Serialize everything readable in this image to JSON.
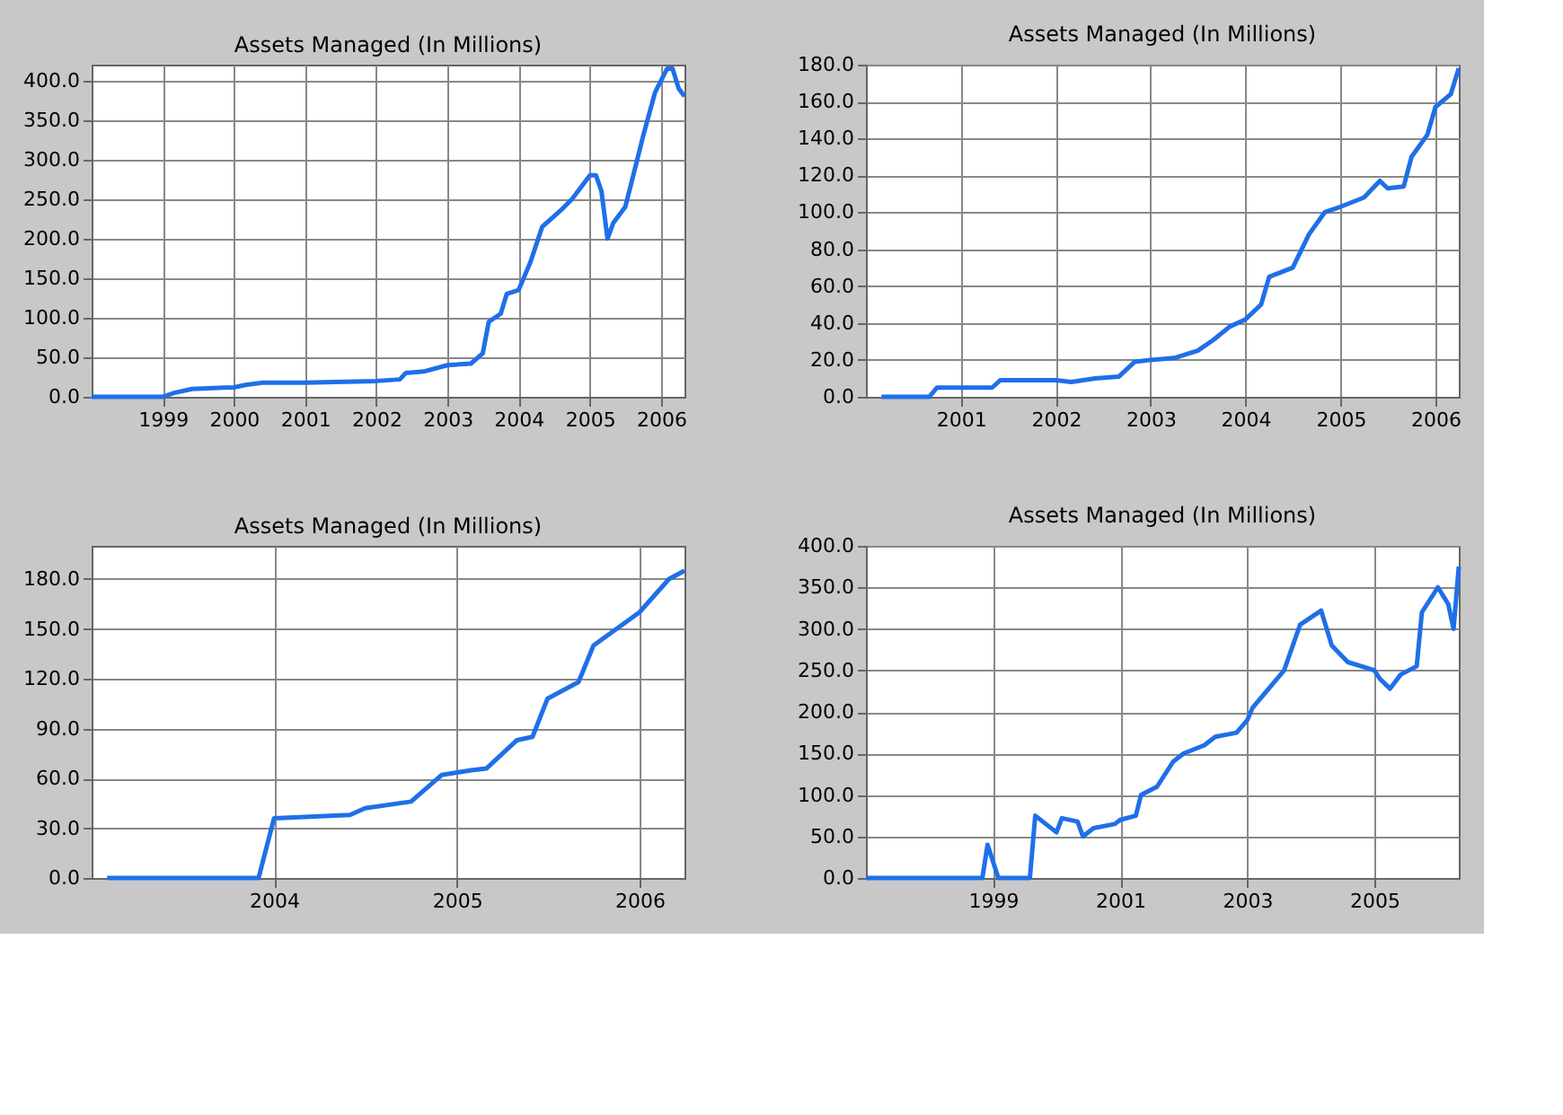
{
  "chart_data": [
    {
      "type": "line",
      "title": "Assets Managed (In Millions)",
      "x": [
        "1998-01",
        "1999-01",
        "1999-03",
        "1999-06",
        "2000-01",
        "2000-03",
        "2000-06",
        "2001-01",
        "2002-01",
        "2002-05",
        "2002-06",
        "2002-09",
        "2003-01",
        "2003-05",
        "2003-07",
        "2003-08",
        "2003-10",
        "2003-11",
        "2004-01",
        "2004-03",
        "2004-05",
        "2004-08",
        "2004-10",
        "2005-01",
        "2005-02",
        "2005-03",
        "2005-04",
        "2005-05",
        "2005-07",
        "2005-08",
        "2005-10",
        "2005-12",
        "2006-02",
        "2006-03",
        "2006-04",
        "2006-05"
      ],
      "series": [
        {
          "color": "#1f6fe8",
          "values": [
            0,
            0,
            5,
            10,
            12,
            15,
            18,
            18,
            20,
            22,
            30,
            32,
            40,
            42,
            55,
            95,
            105,
            130,
            135,
            170,
            215,
            235,
            250,
            280,
            280,
            260,
            200,
            220,
            240,
            270,
            330,
            385,
            415,
            415,
            390,
            380
          ]
        }
      ],
      "xlim": [
        "1998-01",
        "2006-05"
      ],
      "xticks": [
        "1999",
        "2000",
        "2001",
        "2002",
        "2003",
        "2004",
        "2005",
        "2006"
      ],
      "ylim": [
        0,
        420
      ],
      "yticks": [
        {
          "value": 0,
          "label": "0.0"
        },
        {
          "value": 50,
          "label": "50.0"
        },
        {
          "value": 100,
          "label": "100.0"
        },
        {
          "value": 150,
          "label": "150.0"
        },
        {
          "value": 200,
          "label": "200.0"
        },
        {
          "value": 250,
          "label": "250.0"
        },
        {
          "value": 300,
          "label": "300.0"
        },
        {
          "value": 350,
          "label": "350.0"
        },
        {
          "value": 400,
          "label": "400.0"
        }
      ],
      "grid": true,
      "line_style": "solid",
      "marker": "none"
    },
    {
      "type": "line",
      "title": "Assets Managed (In Millions)",
      "x": [
        "2000-03",
        "2000-09",
        "2000-10",
        "2001-05",
        "2001-06",
        "2002-01",
        "2002-03",
        "2002-06",
        "2002-09",
        "2002-11",
        "2003-01",
        "2003-04",
        "2003-07",
        "2003-09",
        "2003-11",
        "2004-01",
        "2004-03",
        "2004-04",
        "2004-07",
        "2004-09",
        "2004-11",
        "2005-01",
        "2005-04",
        "2005-06",
        "2005-07",
        "2005-09",
        "2005-10",
        "2005-12",
        "2006-01",
        "2006-03",
        "2006-04"
      ],
      "series": [
        {
          "color": "#1f6fe8",
          "values": [
            0,
            0,
            5,
            5,
            9,
            9,
            8,
            10,
            11,
            19,
            20,
            21,
            25,
            31,
            38,
            42,
            50,
            65,
            70,
            88,
            100,
            103,
            108,
            117,
            113,
            114,
            130,
            142,
            157,
            164,
            178
          ]
        }
      ],
      "xlim": [
        "2000-01",
        "2006-04"
      ],
      "xticks": [
        "2001",
        "2002",
        "2003",
        "2004",
        "2005",
        "2006"
      ],
      "ylim": [
        0,
        180
      ],
      "yticks": [
        {
          "value": 0,
          "label": "0.0"
        },
        {
          "value": 20,
          "label": "20.0"
        },
        {
          "value": 40,
          "label": "40.0"
        },
        {
          "value": 60,
          "label": "60.0"
        },
        {
          "value": 80,
          "label": "80.0"
        },
        {
          "value": 100,
          "label": "100.0"
        },
        {
          "value": 120,
          "label": "120.0"
        },
        {
          "value": 140,
          "label": "140.0"
        },
        {
          "value": 160,
          "label": "160.0"
        },
        {
          "value": 180,
          "label": "180.0"
        }
      ],
      "grid": true,
      "line_style": "solid",
      "marker": "none"
    },
    {
      "type": "line",
      "title": "Assets Managed (In Millions)",
      "x": [
        "2003-02",
        "2003-12",
        "2004-01",
        "2004-06",
        "2004-07",
        "2004-10",
        "2004-12",
        "2005-02",
        "2005-03",
        "2005-05",
        "2005-06",
        "2005-07",
        "2005-09",
        "2005-10",
        "2006-01",
        "2006-03",
        "2006-04"
      ],
      "series": [
        {
          "color": "#1f6fe8",
          "values": [
            0,
            0,
            36,
            38,
            42,
            46,
            62,
            65,
            66,
            83,
            85,
            108,
            118,
            140,
            160,
            180,
            185
          ]
        }
      ],
      "xlim": [
        "2003-01",
        "2006-04"
      ],
      "xticks": [
        "2004",
        "2005",
        "2006"
      ],
      "ylim": [
        0,
        200
      ],
      "yticks": [
        {
          "value": 0,
          "label": "0.0"
        },
        {
          "value": 30,
          "label": "30.0"
        },
        {
          "value": 60,
          "label": "60.0"
        },
        {
          "value": 90,
          "label": "90.0"
        },
        {
          "value": 120,
          "label": "120.0"
        },
        {
          "value": 150,
          "label": "150.0"
        },
        {
          "value": 180,
          "label": "180.0"
        }
      ],
      "grid": true,
      "line_style": "solid",
      "marker": "none"
    },
    {
      "type": "line",
      "title": "Assets Managed (In Millions)",
      "x": [
        "1997-01",
        "1998-11",
        "1998-12",
        "1999-01",
        "1999-02",
        "1999-08",
        "1999-09",
        "2000-01",
        "2000-02",
        "2000-05",
        "2000-06",
        "2000-08",
        "2000-12",
        "2001-01",
        "2001-04",
        "2001-05",
        "2001-08",
        "2001-11",
        "2002-01",
        "2002-05",
        "2002-07",
        "2002-11",
        "2003-01",
        "2003-02",
        "2003-08",
        "2003-11",
        "2004-03",
        "2004-05",
        "2004-08",
        "2005-01",
        "2005-02",
        "2005-04",
        "2005-06",
        "2005-09",
        "2005-10",
        "2006-01",
        "2006-03",
        "2006-04",
        "2006-05"
      ],
      "series": [
        {
          "color": "#1f6fe8",
          "values": [
            0,
            0,
            40,
            20,
            0,
            0,
            75,
            55,
            72,
            68,
            50,
            60,
            65,
            70,
            75,
            100,
            110,
            140,
            150,
            160,
            170,
            175,
            190,
            205,
            250,
            305,
            322,
            280,
            260,
            250,
            240,
            228,
            245,
            255,
            320,
            350,
            330,
            300,
            375
          ]
        }
      ],
      "xlim": [
        "1997-01",
        "2006-05"
      ],
      "xticks": [
        "1999",
        "2001",
        "2003",
        "2005"
      ],
      "ylim": [
        0,
        400
      ],
      "yticks": [
        {
          "value": 0,
          "label": "0.0"
        },
        {
          "value": 50,
          "label": "50.0"
        },
        {
          "value": 100,
          "label": "100.0"
        },
        {
          "value": 150,
          "label": "150.0"
        },
        {
          "value": 200,
          "label": "200.0"
        },
        {
          "value": 250,
          "label": "250.0"
        },
        {
          "value": 300,
          "label": "300.0"
        },
        {
          "value": 350,
          "label": "350.0"
        },
        {
          "value": 400,
          "label": "400.0"
        }
      ],
      "grid": true,
      "line_style": "solid",
      "marker": "none"
    }
  ]
}
